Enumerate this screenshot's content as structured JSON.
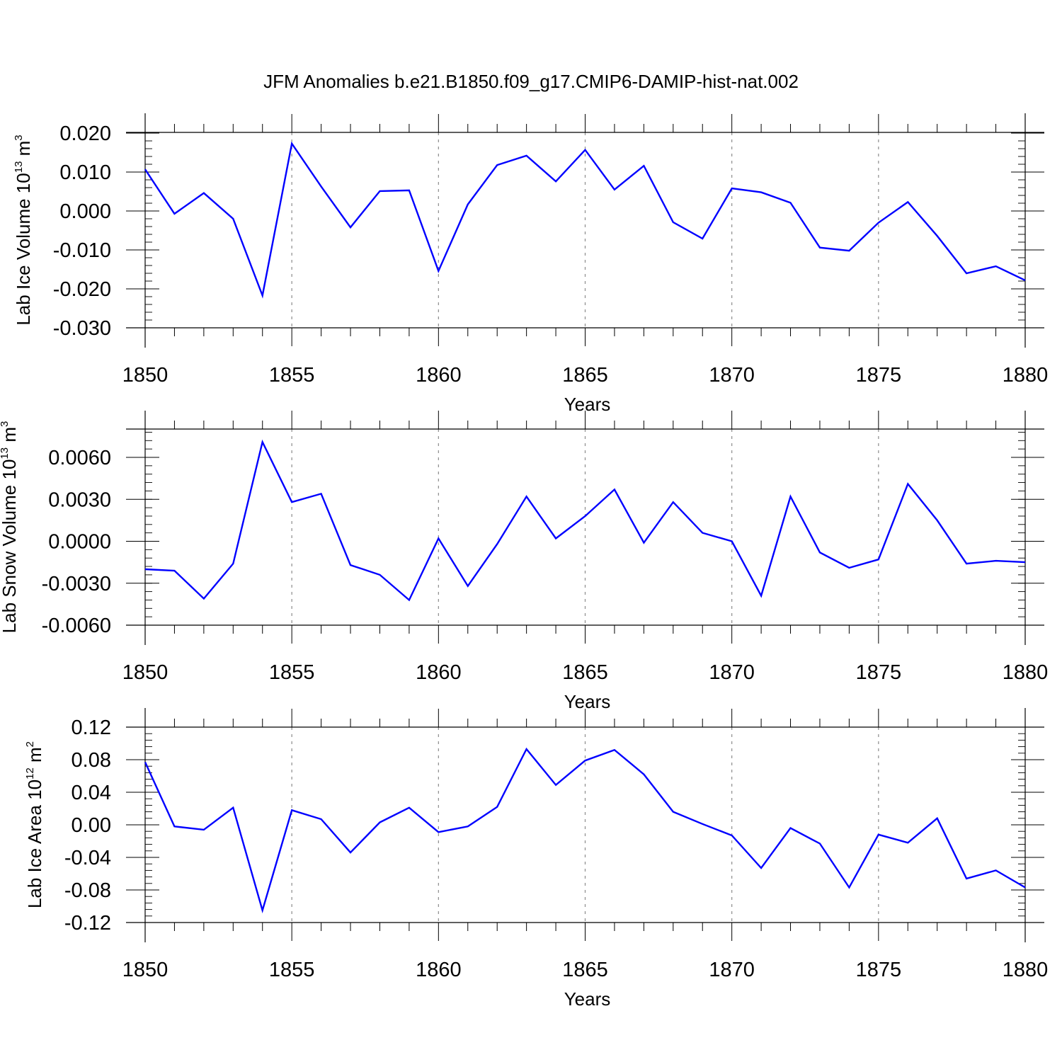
{
  "title": "JFM Anomalies b.e21.B1850.f09_g17.CMIP6-DAMIP-hist-nat.002",
  "colors": {
    "line": "#0000ff",
    "axis": "#000000",
    "grid": "#8c8c8c"
  },
  "chart_data": [
    {
      "type": "line",
      "ylabel": "Lab Ice Volume",
      "ylabel_unit_base": "10",
      "ylabel_unit_exp": "13",
      "ylabel_unit_sym": "m",
      "ylabel_unit_sym_exp": "3",
      "xlabel": "Years",
      "xlim": [
        1850,
        1880
      ],
      "ylim": [
        -0.03,
        0.0225
      ],
      "yticks": [
        0.02,
        0.01,
        0.0,
        -0.01,
        -0.02,
        -0.03
      ],
      "ytick_labels": [
        "0.020",
        "0.010",
        "0.000",
        "-0.010",
        "-0.020",
        "-0.030"
      ],
      "xticks": [
        1850,
        1855,
        1860,
        1865,
        1870,
        1875,
        1880
      ],
      "xtick_labels": [
        "1850",
        "1855",
        "1860",
        "1865",
        "1870",
        "1875",
        "1880"
      ],
      "grid_x": [
        1855,
        1860,
        1865,
        1870,
        1875
      ],
      "x": [
        1850,
        1851,
        1852,
        1853,
        1854,
        1855,
        1856,
        1857,
        1858,
        1859,
        1860,
        1861,
        1862,
        1863,
        1864,
        1865,
        1866,
        1867,
        1868,
        1869,
        1870,
        1871,
        1872,
        1873,
        1874,
        1875,
        1876,
        1877,
        1878,
        1879,
        1880
      ],
      "series": [
        {
          "name": "Lab Ice Volume",
          "values": [
            0.0107,
            -0.0007,
            0.0046,
            -0.002,
            -0.0217,
            0.0173,
            0.0063,
            -0.0042,
            0.0051,
            0.0053,
            -0.0154,
            0.0017,
            0.0118,
            0.0142,
            0.0076,
            0.0157,
            0.0055,
            0.0116,
            -0.0029,
            -0.0071,
            0.0058,
            0.0048,
            0.0021,
            -0.0094,
            -0.0102,
            -0.003,
            0.0023,
            -0.0064,
            -0.016,
            -0.0142,
            -0.0178
          ]
        }
      ]
    },
    {
      "type": "line",
      "ylabel": "Lab Snow Volume",
      "ylabel_unit_base": "10",
      "ylabel_unit_exp": "13",
      "ylabel_unit_sym": "m",
      "ylabel_unit_sym_exp": "3",
      "xlabel": "Years",
      "xlim": [
        1850,
        1880
      ],
      "ylim": [
        -0.006,
        0.008
      ],
      "yticks": [
        0.006,
        0.003,
        0.0,
        -0.003,
        -0.006
      ],
      "ytick_labels": [
        "0.0060",
        "0.0030",
        "0.0000",
        "-0.0030",
        "-0.0060"
      ],
      "xticks": [
        1850,
        1855,
        1860,
        1865,
        1870,
        1875,
        1880
      ],
      "xtick_labels": [
        "1850",
        "1855",
        "1860",
        "1865",
        "1870",
        "1875",
        "1880"
      ],
      "grid_x": [
        1855,
        1860,
        1865,
        1870,
        1875
      ],
      "x": [
        1850,
        1851,
        1852,
        1853,
        1854,
        1855,
        1856,
        1857,
        1858,
        1859,
        1860,
        1861,
        1862,
        1863,
        1864,
        1865,
        1866,
        1867,
        1868,
        1869,
        1870,
        1871,
        1872,
        1873,
        1874,
        1875,
        1876,
        1877,
        1878,
        1879,
        1880
      ],
      "series": [
        {
          "name": "Lab Snow Volume",
          "values": [
            -0.002,
            -0.0021,
            -0.0041,
            -0.0016,
            0.0071,
            0.0028,
            0.0034,
            -0.0017,
            -0.0024,
            -0.0042,
            0.0002,
            -0.0032,
            -0.0002,
            0.0032,
            0.0002,
            0.0018,
            0.0037,
            -0.0001,
            0.0028,
            0.0006,
            0.0,
            -0.0039,
            0.0032,
            -0.0008,
            -0.0019,
            -0.0013,
            0.0041,
            0.0015,
            -0.0016,
            -0.0014,
            -0.0015
          ]
        }
      ]
    },
    {
      "type": "line",
      "ylabel": "Lab Ice Area",
      "ylabel_unit_base": "10",
      "ylabel_unit_exp": "12",
      "ylabel_unit_sym": "m",
      "ylabel_unit_sym_exp": "2",
      "xlabel": "Years",
      "xlim": [
        1850,
        1880
      ],
      "ylim": [
        -0.12,
        0.12
      ],
      "yticks": [
        0.12,
        0.08,
        0.04,
        0.0,
        -0.04,
        -0.08,
        -0.12
      ],
      "ytick_labels": [
        "0.12",
        "0.08",
        "0.04",
        "0.00",
        "-0.04",
        "-0.08",
        "-0.12"
      ],
      "xticks": [
        1850,
        1855,
        1860,
        1865,
        1870,
        1875,
        1880
      ],
      "xtick_labels": [
        "1850",
        "1855",
        "1860",
        "1865",
        "1870",
        "1875",
        "1880"
      ],
      "grid_x": [
        1855,
        1860,
        1865,
        1870,
        1875
      ],
      "x": [
        1850,
        1851,
        1852,
        1853,
        1854,
        1855,
        1856,
        1857,
        1858,
        1859,
        1860,
        1861,
        1862,
        1863,
        1864,
        1865,
        1866,
        1867,
        1868,
        1869,
        1870,
        1871,
        1872,
        1873,
        1874,
        1875,
        1876,
        1877,
        1878,
        1879,
        1880
      ],
      "series": [
        {
          "name": "Lab Ice Area",
          "values": [
            0.077,
            -0.002,
            -0.006,
            0.021,
            -0.105,
            0.018,
            0.007,
            -0.034,
            0.003,
            0.021,
            -0.009,
            -0.002,
            0.022,
            0.093,
            0.049,
            0.079,
            0.092,
            0.062,
            0.016,
            0.001,
            -0.013,
            -0.053,
            -0.004,
            -0.023,
            -0.077,
            -0.012,
            -0.022,
            0.008,
            -0.066,
            -0.056,
            -0.077
          ]
        }
      ]
    }
  ]
}
